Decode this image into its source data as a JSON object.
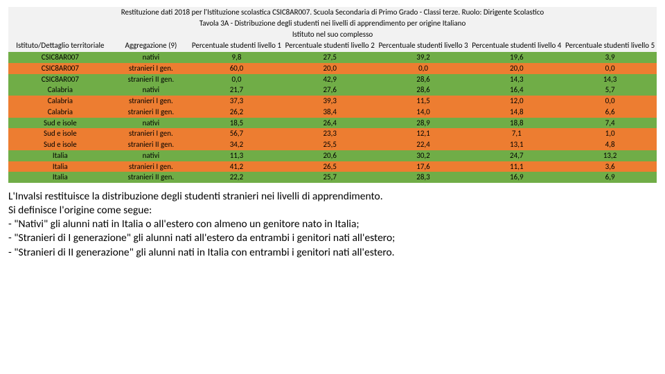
{
  "table": {
    "header_bg": "#f2f2f2",
    "title_lines": [
      "Restituzione dati 2018 per l'Istituzione scolastica CSIC8AR007. Scuola Secondaria di Primo Grado - Classi terze. Ruolo: Dirigente Scolastico",
      "Tavola 3A - Distribuzione degli studenti nei livelli di apprendimento per origine Italiano",
      "Istituto nel suo complesso"
    ],
    "columns": [
      "Istituto/Dettaglio territoriale",
      "Aggregazione (9)",
      "Percentuale studenti livello 1",
      "Percentuale studenti livello 2",
      "Percentuale studenti livello 3",
      "Percentuale studenti livello 4",
      "Percentuale studenti livello 5"
    ],
    "col_widths": [
      "16%",
      "12%",
      "14.4%",
      "14.4%",
      "14.4%",
      "14.4%",
      "14.4%"
    ],
    "rows": [
      {
        "color": "green",
        "cells": [
          "CSIC8AR007",
          "nativi",
          "9,8",
          "27,5",
          "39,2",
          "19,6",
          "3,9"
        ]
      },
      {
        "color": "orange",
        "cells": [
          "CSIC8AR007",
          "stranieri I gen.",
          "60,0",
          "20,0",
          "0,0",
          "20,0",
          "0,0"
        ]
      },
      {
        "color": "green",
        "cells": [
          "CSIC8AR007",
          "stranieri II gen.",
          "0,0",
          "42,9",
          "28,6",
          "14,3",
          "14,3"
        ]
      },
      {
        "color": "green",
        "cells": [
          "Calabria",
          "nativi",
          "21,7",
          "27,6",
          "28,6",
          "16,4",
          "5,7"
        ]
      },
      {
        "color": "orange",
        "cells": [
          "Calabria",
          "stranieri I gen.",
          "37,3",
          "39,3",
          "11,5",
          "12,0",
          "0,0"
        ]
      },
      {
        "color": "orange",
        "cells": [
          "Calabria",
          "stranieri II gen.",
          "26,2",
          "38,4",
          "14,0",
          "14,8",
          "6,6"
        ]
      },
      {
        "color": "green",
        "cells": [
          "Sud e isole",
          "nativi",
          "18,5",
          "26,4",
          "28,9",
          "18,8",
          "7,4"
        ]
      },
      {
        "color": "orange",
        "cells": [
          "Sud e isole",
          "stranieri I gen.",
          "56,7",
          "23,3",
          "12,1",
          "7,1",
          "1,0"
        ]
      },
      {
        "color": "orange",
        "cells": [
          "Sud e isole",
          "stranieri II gen.",
          "34,2",
          "25,5",
          "22,4",
          "13,1",
          "4,8"
        ]
      },
      {
        "color": "green",
        "cells": [
          "Italia",
          "nativi",
          "11,3",
          "20,6",
          "30,2",
          "24,7",
          "13,2"
        ]
      },
      {
        "color": "orange",
        "cells": [
          "Italia",
          "stranieri I gen.",
          "41,2",
          "26,5",
          "17,6",
          "11,1",
          "3,6"
        ]
      },
      {
        "color": "green",
        "cells": [
          "Italia",
          "stranieri II gen.",
          "22,2",
          "25,7",
          "28,3",
          "16,9",
          "6,9"
        ]
      }
    ],
    "row_colors": {
      "green": "#70ad47",
      "orange": "#ed7d31"
    }
  },
  "description": {
    "lines": [
      "L'Invalsi restituisce la distribuzione degli studenti stranieri  nei livelli di apprendimento.",
      " Si definisce l'origine come segue:",
      "- \"Nativi\" gli alunni nati in Italia o all'estero con almeno un genitore nato in Italia;",
      "- \"Stranieri di I generazione\" gli alunni nati all'estero da entrambi i genitori nati all'estero;",
      "- \"Stranieri di II generazione\" gli alunni nati in Italia con entrambi i genitori nati all'estero."
    ]
  }
}
